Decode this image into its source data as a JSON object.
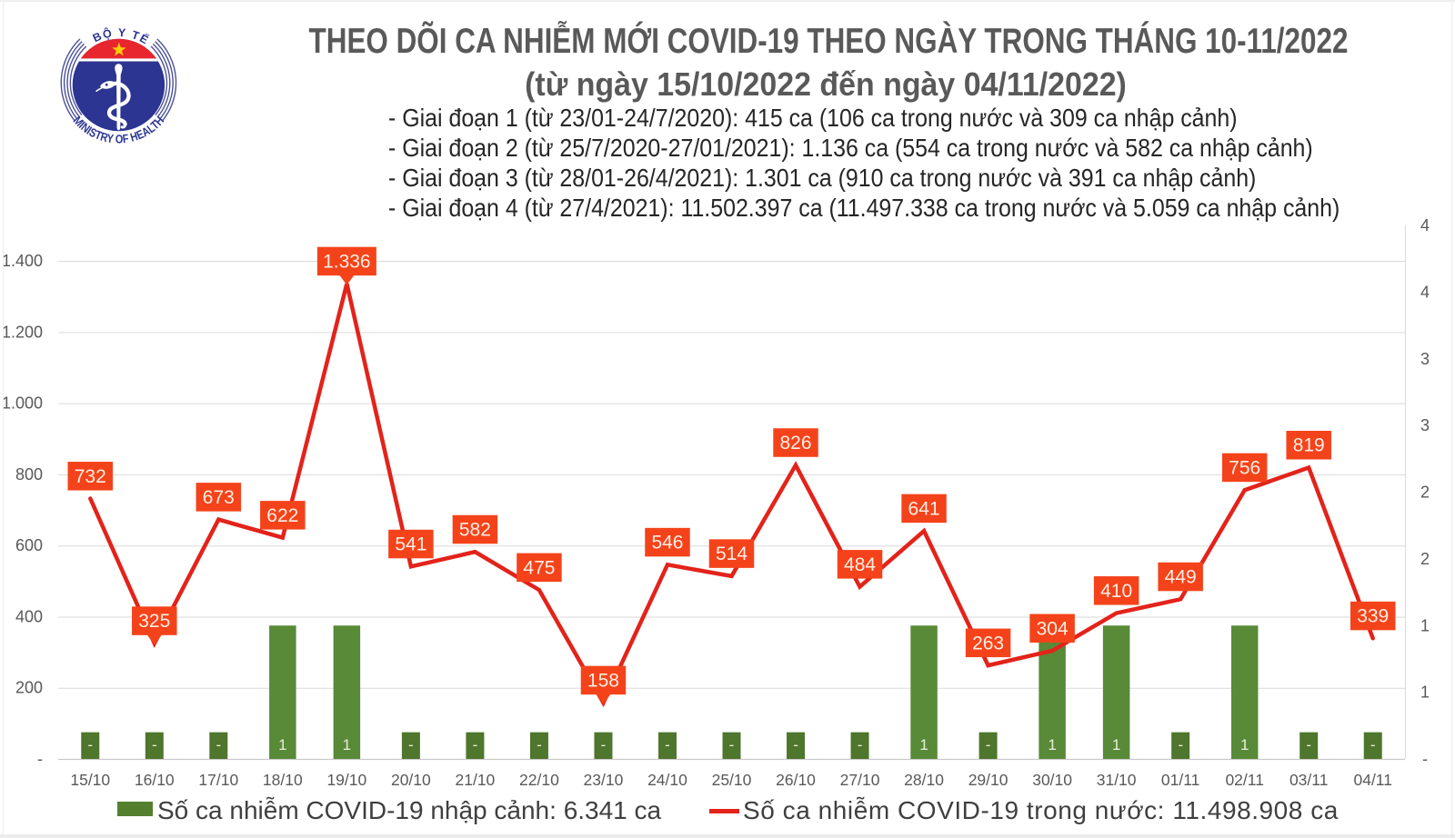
{
  "logo": {
    "top_text": "BỘ Y TẾ",
    "bottom_text": "MINISTRY OF HEALTH",
    "red": "#e21e26",
    "blue": "#2b3390",
    "star_color": "#ffcb05",
    "text_color": "#2b3390"
  },
  "header": {
    "title": "THEO DÕI CA NHIỄM MỚI COVID-19 THEO NGÀY TRONG THÁNG 10-11/2022",
    "subtitle": "(từ ngày 15/10/2022 đến ngày 04/11/2022)",
    "bullets": [
      "- Giai đoạn 1 (từ 23/01-24/7/2020): 415 ca (106 ca trong nước và 309 ca nhập cảnh)",
      "- Giai đoạn 2 (từ 25/7/2020-27/01/2021): 1.136 ca (554 ca trong nước và 582 ca nhập cảnh)",
      "- Giai đoạn 3 (từ 28/01-26/4/2021): 1.301 ca (910 ca trong nước và 391 ca nhập cảnh)",
      "- Giai đoạn 4 (từ 27/4/2021): 11.502.397 ca (11.497.338 ca trong nước và 5.059 ca nhập cảnh)"
    ]
  },
  "chart_data": {
    "type": "line+bar",
    "categories": [
      "15/10",
      "16/10",
      "17/10",
      "18/10",
      "19/10",
      "20/10",
      "21/10",
      "22/10",
      "23/10",
      "24/10",
      "25/10",
      "26/10",
      "27/10",
      "28/10",
      "29/10",
      "30/10",
      "31/10",
      "01/11",
      "02/11",
      "03/11",
      "04/11"
    ],
    "series": [
      {
        "name": "Số ca nhiễm COVID-19 trong nước",
        "type": "line",
        "axis": "left",
        "color": "#e3231a",
        "values": [
          732,
          325,
          673,
          622,
          1336,
          541,
          582,
          475,
          158,
          546,
          514,
          826,
          484,
          641,
          263,
          304,
          410,
          449,
          756,
          819,
          339
        ],
        "labels": [
          "732",
          "325",
          "673",
          "622",
          "1.336",
          "541",
          "582",
          "475",
          "158",
          "546",
          "514",
          "826",
          "484",
          "641",
          "263",
          "304",
          "410",
          "449",
          "756",
          "819",
          "339"
        ]
      },
      {
        "name": "Số ca nhiễm COVID-19 nhập cảnh",
        "type": "bar",
        "axis": "right",
        "color_stub": "#4e762c",
        "color_tall": "#588a38",
        "values": [
          0.2,
          0.2,
          0.2,
          1,
          1,
          0.2,
          0.2,
          0.2,
          0.2,
          0.2,
          0.2,
          0.2,
          0.2,
          1,
          0.2,
          1,
          1,
          0.2,
          1,
          0.2,
          0.2
        ],
        "labels": [
          "-",
          "-",
          "-",
          "1",
          "1",
          "-",
          "-",
          "-",
          "-",
          "-",
          "-",
          "-",
          "-",
          "1",
          "-",
          "1",
          "1",
          "-",
          "1",
          "-",
          "-"
        ],
        "bar_label_color": "#e7efdb"
      }
    ],
    "point_label_style": {
      "box_fill": "#f4431a",
      "text_color": "#ffeee3",
      "pointer_indices": [
        1,
        4,
        8
      ]
    },
    "y_axis_left": {
      "labels": [
        "1.400",
        "1.200",
        "1.000",
        "800",
        "600",
        "400",
        "200",
        "-"
      ],
      "max": 1500,
      "tick_step": 200,
      "grid": true,
      "gridline_color": "#dadada"
    },
    "y_axis_right": {
      "labels": [
        "4",
        "4",
        "3",
        "3",
        "2",
        "2",
        "1",
        "1",
        "-"
      ],
      "max": 4,
      "tick_step": 0.5
    },
    "x_axis": {
      "label_color": "#595959"
    },
    "axis_text_color": "#595959",
    "legend": [
      {
        "swatch": "bar",
        "label": "Số ca nhiễm COVID-19 nhập cảnh: 6.341 ca"
      },
      {
        "swatch": "line",
        "label": "Số ca nhiễm COVID-19 trong nước: 11.498.908 ca"
      }
    ],
    "legend_position": "bottom"
  }
}
